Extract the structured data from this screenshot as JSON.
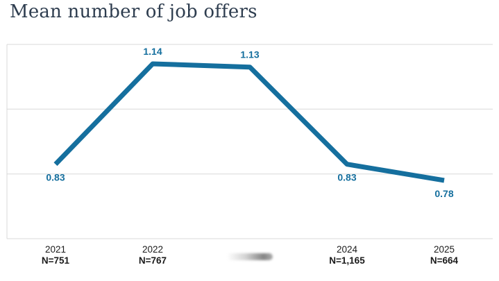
{
  "title": "Mean number of job offers",
  "chart_data": {
    "type": "line",
    "title": "Mean number of job offers",
    "categories": [
      "2021",
      "2022",
      "",
      "2024",
      "2025"
    ],
    "values": [
      0.83,
      1.14,
      1.13,
      0.83,
      0.78
    ],
    "ylim": [
      0.6,
      1.2
    ],
    "gridline_values": [
      0.6,
      0.8,
      1.0,
      1.2
    ],
    "grid": "horizontal-only",
    "legend": "none",
    "xlabel": "",
    "ylabel": "",
    "line_color": "#156f9e",
    "value_label_color": "#156f9e",
    "gridline_color": "#d8d8d8",
    "points": [
      {
        "year": "2021",
        "n_label": "N=751",
        "value": 0.83,
        "value_label": "0.83",
        "label_position": "below"
      },
      {
        "year": "2022",
        "n_label": "N=767",
        "value": 1.14,
        "value_label": "1.14",
        "label_position": "above"
      },
      {
        "year": "",
        "n_label": "",
        "value": 1.13,
        "value_label": "1.13",
        "label_position": "above",
        "x_label_redacted": true
      },
      {
        "year": "2024",
        "n_label": "N=1,165",
        "value": 0.83,
        "value_label": "0.83",
        "label_position": "below"
      },
      {
        "year": "2025",
        "n_label": "N=664",
        "value": 0.78,
        "value_label": "0.78",
        "label_position": "below"
      }
    ]
  }
}
